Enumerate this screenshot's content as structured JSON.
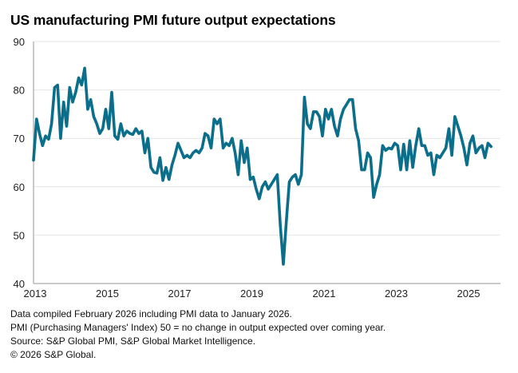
{
  "chart_data": {
    "type": "line",
    "title": "US manufacturing PMI future output expectations",
    "xlabel": "",
    "ylabel": "",
    "x_start": "2013-01",
    "x_end": "2026-01",
    "frequency": "monthly",
    "xlim": [
      2013,
      2026.08
    ],
    "ylim": [
      40,
      90
    ],
    "y_ticks": [
      "40",
      "50",
      "60",
      "70",
      "80",
      "90"
    ],
    "x_ticks": [
      "2013",
      "2015",
      "2017",
      "2019",
      "2021",
      "2023",
      "2025"
    ],
    "grid": true,
    "legend": "none",
    "series": [
      {
        "name": "US manufacturing PMI future output expectations",
        "color": "#0b6e8a",
        "values": [
          65.5,
          74.0,
          71.0,
          68.5,
          70.5,
          69.8,
          73.0,
          80.5,
          81.0,
          70.0,
          77.5,
          72.5,
          80.5,
          77.5,
          79.5,
          82.5,
          81.0,
          84.5,
          76.0,
          78.0,
          74.5,
          73.0,
          71.0,
          72.0,
          76.0,
          72.0,
          79.5,
          70.5,
          69.8,
          73.0,
          70.5,
          71.5,
          71.0,
          70.8,
          72.0,
          71.0,
          71.5,
          67.0,
          70.0,
          64.0,
          63.0,
          62.8,
          66.0,
          61.3,
          64.0,
          61.5,
          64.5,
          66.5,
          69.0,
          67.5,
          66.0,
          66.5,
          66.0,
          67.0,
          67.5,
          67.0,
          68.0,
          71.0,
          70.5,
          68.0,
          74.0,
          73.0,
          74.0,
          68.0,
          69.0,
          68.5,
          70.0,
          67.0,
          62.5,
          69.5,
          65.0,
          68.0,
          61.5,
          62.0,
          59.5,
          57.5,
          60.0,
          61.0,
          59.5,
          60.5,
          61.5,
          62.5,
          52.0,
          44.0,
          53.0,
          61.0,
          62.0,
          62.5,
          60.5,
          62.5,
          78.5,
          73.0,
          72.0,
          75.5,
          75.5,
          74.5,
          70.5,
          76.0,
          74.0,
          76.0,
          72.5,
          70.5,
          74.0,
          76.0,
          77.0,
          78.0,
          78.0,
          72.0,
          69.5,
          63.5,
          63.5,
          67.0,
          66.0,
          57.8,
          60.5,
          62.5,
          68.5,
          67.5,
          68.0,
          67.8,
          69.0,
          68.5,
          63.5,
          68.8,
          63.5,
          69.5,
          64.0,
          68.5,
          72.0,
          68.5,
          68.5,
          66.5,
          67.0,
          62.5,
          66.5,
          66.0,
          67.0,
          68.0,
          72.0,
          66.5,
          74.5,
          72.5,
          70.5,
          68.0,
          64.5,
          69.0,
          70.5,
          67.0,
          68.0,
          68.5,
          66.0,
          69.0,
          68.3
        ]
      }
    ],
    "notes": [
      "Data compiled February 2026 including PMI data to January 2026.",
      "PMI (Purchasing Managers' Index) 50 = no change in output expected over coming year.",
      "Source: S&P Global PMI, S&P Global Market Intelligence.",
      "© 2026 S&P Global."
    ]
  },
  "colors": {
    "line": "#0b6e8a",
    "grid": "#e4e4e4",
    "axis": "#b8b8b8",
    "text": "#000000"
  }
}
